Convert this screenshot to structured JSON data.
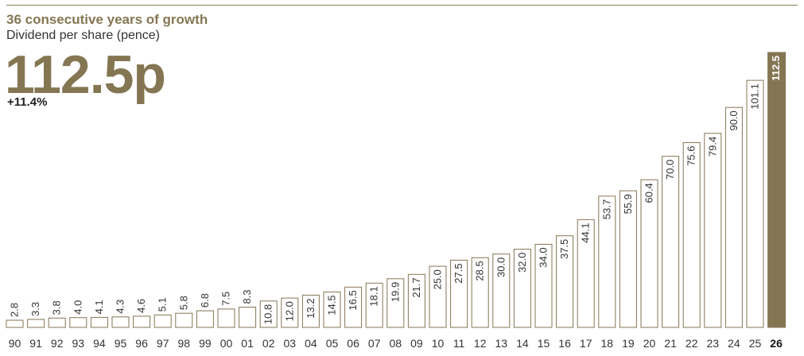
{
  "header": {
    "title": "36 consecutive years of growth",
    "subtitle": "Dividend per share (pence)",
    "headline_value": "112.5p",
    "headline_change": "+11.4%"
  },
  "colors": {
    "accent": "#857653",
    "text": "#333333",
    "background": "#ffffff"
  },
  "chart_data": {
    "type": "bar",
    "title": "36 consecutive years of growth",
    "subtitle": "Dividend per share (pence)",
    "xlabel": "",
    "ylabel": "",
    "ylim": [
      0,
      112.5
    ],
    "grid": false,
    "highlight_category": "26",
    "categories": [
      "90",
      "91",
      "92",
      "93",
      "94",
      "95",
      "96",
      "97",
      "98",
      "99",
      "00",
      "01",
      "02",
      "03",
      "04",
      "05",
      "06",
      "07",
      "08",
      "09",
      "10",
      "11",
      "12",
      "13",
      "14",
      "15",
      "16",
      "17",
      "18",
      "19",
      "20",
      "21",
      "22",
      "23",
      "24",
      "25",
      "26"
    ],
    "values": [
      2.8,
      3.3,
      3.8,
      4.0,
      4.1,
      4.3,
      4.6,
      5.1,
      5.8,
      6.8,
      7.5,
      8.3,
      10.8,
      12.0,
      13.2,
      14.5,
      16.5,
      18.1,
      19.9,
      21.7,
      25.0,
      27.5,
      28.5,
      30.0,
      32.0,
      34.0,
      37.5,
      44.1,
      53.7,
      55.9,
      60.4,
      70.0,
      75.6,
      79.4,
      90.0,
      101.1,
      112.5
    ],
    "value_labels": [
      "2.8",
      "3.3",
      "3.8",
      "4.0",
      "4.1",
      "4.3",
      "4.6",
      "5.1",
      "5.8",
      "6.8",
      "7.5",
      "8.3",
      "10.8",
      "12.0",
      "13.2",
      "14.5",
      "16.5",
      "18.1",
      "19.9",
      "21.7",
      "25.0",
      "27.5",
      "28.5",
      "30.0",
      "32.0",
      "34.0",
      "37.5",
      "44.1",
      "53.7",
      "55.9",
      "60.4",
      "70.0",
      "75.6",
      "79.4",
      "90.0",
      "101.1",
      "112.5"
    ]
  }
}
